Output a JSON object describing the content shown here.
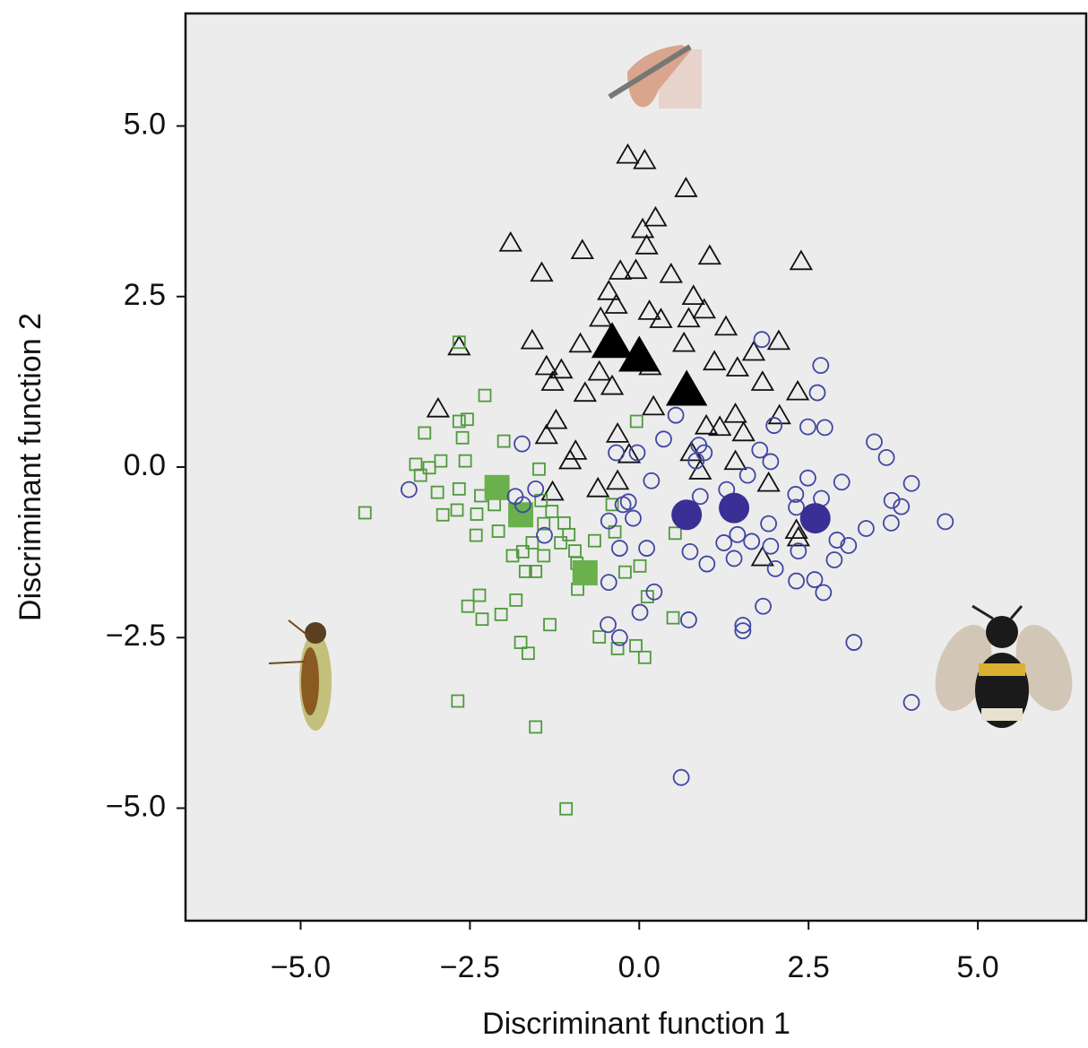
{
  "chart_data": {
    "type": "scatter",
    "xlabel": "Discriminant function 1",
    "ylabel": "Discriminant function 2",
    "xlim": [
      -6.7,
      6.6
    ],
    "ylim": [
      -6.65,
      6.65
    ],
    "xticks": [
      {
        "value": -5,
        "label": "−5.0"
      },
      {
        "value": -2.5,
        "label": "−2.5"
      },
      {
        "value": 0,
        "label": "0.0"
      },
      {
        "value": 2.5,
        "label": "2.5"
      },
      {
        "value": 5,
        "label": "5.0"
      }
    ],
    "yticks": [
      {
        "value": -5,
        "label": "−5.0"
      },
      {
        "value": -2.5,
        "label": "−2.5"
      },
      {
        "value": 0,
        "label": "0.0"
      },
      {
        "value": 2.5,
        "label": "2.5"
      },
      {
        "value": 5,
        "label": "5.0"
      }
    ],
    "series": [
      {
        "marker": "triangle",
        "filled": false,
        "color": "#111111",
        "x": [
          -0.17,
          0.08,
          0.69,
          0.24,
          0.05,
          -1.9,
          -0.84,
          0.11,
          1.04,
          2.39,
          -1.44,
          -0.28,
          -0.05,
          0.47,
          -0.45,
          0.8,
          -0.34,
          -0.57,
          0.15,
          0.96,
          0.32,
          1.28,
          0.73,
          -2.66,
          -1.58,
          -0.87,
          0.66,
          1.69,
          2.06,
          -1.37,
          -1.15,
          -0.59,
          0.16,
          1.11,
          1.45,
          1.82,
          -1.28,
          -0.4,
          2.34,
          -0.8,
          0.21,
          2.07,
          -2.97,
          -1.23,
          0.99,
          1.19,
          1.54,
          -0.32,
          1.42,
          -1.37,
          -0.94,
          0.77,
          -0.15,
          0.9,
          -1.02,
          1.42,
          -0.61,
          1.91,
          -1.28,
          -0.32,
          2.32,
          1.82,
          2.35
        ],
        "y": [
          4.56,
          4.48,
          4.07,
          3.64,
          3.47,
          3.27,
          3.16,
          3.23,
          3.08,
          3.0,
          2.83,
          2.86,
          2.87,
          2.81,
          2.56,
          2.49,
          2.36,
          2.17,
          2.27,
          2.29,
          2.15,
          2.04,
          2.16,
          1.75,
          1.84,
          1.79,
          1.8,
          1.67,
          1.83,
          1.46,
          1.41,
          1.38,
          1.46,
          1.53,
          1.44,
          1.23,
          1.23,
          1.17,
          1.09,
          1.07,
          0.87,
          0.74,
          0.84,
          0.67,
          0.59,
          0.57,
          0.49,
          0.47,
          0.76,
          0.45,
          0.22,
          0.2,
          0.17,
          -0.07,
          0.08,
          0.07,
          -0.33,
          -0.25,
          -0.38,
          -0.22,
          -0.94,
          -1.34,
          -1.05
        ]
      },
      {
        "marker": "triangle",
        "filled": true,
        "color": "#000000",
        "x": [
          -0.4,
          0,
          0.7
        ],
        "y": [
          1.8,
          1.6,
          1.1
        ]
      },
      {
        "marker": "square",
        "filled": false,
        "color": "#4f9a3c",
        "x": [
          -2.66,
          -2.28,
          -3.17,
          -2.66,
          -2.54,
          -2.61,
          -2.0,
          -2.57,
          -3.3,
          -3.1,
          -2.93,
          -3.23,
          -2.98,
          -2.66,
          -2.34,
          -2.14,
          -4.05,
          -2.9,
          -2.69,
          -2.41,
          -2.08,
          -2.4,
          -1.87,
          -1.48,
          -1.45,
          -1.29,
          -1.11,
          -1.16,
          -1.41,
          -1.58,
          -1.72,
          -1.41,
          -1.53,
          -1.68,
          -0.95,
          -0.66,
          -0.92,
          -1.04,
          -0.36,
          -0.21,
          0.01,
          0.12,
          -0.91,
          -2.36,
          -2.53,
          -1.82,
          -2.04,
          -2.32,
          -1.32,
          -1.75,
          -1.64,
          -0.59,
          -0.32,
          -0.05,
          0.08,
          0.5,
          -2.68,
          -1.53,
          -1.08,
          -0.04,
          -0.4,
          0.53
        ],
        "y": [
          1.83,
          1.05,
          0.5,
          0.67,
          0.7,
          0.43,
          0.38,
          0.09,
          0.04,
          -0.01,
          0.09,
          -0.12,
          -0.37,
          -0.32,
          -0.42,
          -0.55,
          -0.67,
          -0.7,
          -0.63,
          -1.0,
          -0.94,
          -0.69,
          -1.3,
          -0.03,
          -0.49,
          -0.65,
          -0.82,
          -1.11,
          -0.83,
          -1.11,
          -1.24,
          -1.3,
          -1.53,
          -1.53,
          -1.23,
          -1.08,
          -1.41,
          -0.99,
          -0.95,
          -1.54,
          -1.45,
          -1.9,
          -1.79,
          -1.88,
          -2.04,
          -1.95,
          -2.16,
          -2.23,
          -2.31,
          -2.57,
          -2.73,
          -2.49,
          -2.66,
          -2.62,
          -2.79,
          -2.21,
          -3.43,
          -3.81,
          -5.01,
          0.67,
          -0.55,
          -0.97
        ]
      },
      {
        "marker": "square",
        "filled": true,
        "color": "#6ab04c",
        "x": [
          -2.1,
          -1.75,
          -0.8
        ],
        "y": [
          -0.3,
          -0.7,
          -1.55
        ]
      },
      {
        "marker": "circle",
        "filled": false,
        "color": "#3f46a3",
        "x": [
          -3.4,
          -1.73,
          -1.53,
          -1.83,
          -1.4,
          -1.72,
          -0.34,
          -0.03,
          0.36,
          0.54,
          0.18,
          -0.16,
          -0.24,
          -0.09,
          -0.45,
          -0.29,
          0.11,
          -0.45,
          0.22,
          0.01,
          -0.46,
          -0.29,
          0.73,
          0.75,
          1.0,
          1.25,
          1.4,
          1.66,
          2.01,
          1.94,
          2.35,
          2.32,
          2.59,
          2.72,
          2.88,
          3.09,
          3.35,
          2.92,
          2.69,
          2.99,
          2.31,
          2.49,
          2.32,
          3.72,
          3.87,
          4.02,
          3.73,
          4.52,
          3.47,
          3.65,
          2.68,
          2.63,
          2.74,
          2.49,
          1.81,
          1.99,
          1.78,
          1.94,
          1.6,
          1.29,
          0.9,
          1.91,
          1.45,
          1.83,
          1.53,
          1.53,
          3.17,
          4.02,
          0.62,
          0.88,
          0.96,
          0.84
        ],
        "y": [
          -0.33,
          0.34,
          -0.32,
          -0.43,
          -1.0,
          -0.55,
          0.21,
          0.21,
          0.41,
          0.76,
          -0.2,
          -0.51,
          -0.55,
          -0.75,
          -0.79,
          -1.19,
          -1.19,
          -1.69,
          -1.83,
          -2.13,
          -2.31,
          -2.5,
          -2.24,
          -1.24,
          -1.42,
          -1.11,
          -1.34,
          -1.09,
          -1.49,
          -1.16,
          -1.23,
          -1.67,
          -1.65,
          -1.84,
          -1.36,
          -1.15,
          -0.9,
          -1.07,
          -0.46,
          -0.22,
          -0.4,
          -0.16,
          -0.59,
          -0.82,
          -0.58,
          -0.24,
          -0.49,
          -0.8,
          0.37,
          0.14,
          1.49,
          1.09,
          0.58,
          0.59,
          1.87,
          0.61,
          0.25,
          0.08,
          -0.12,
          -0.33,
          -0.43,
          -0.83,
          -0.99,
          -2.04,
          -2.32,
          -2.4,
          -2.57,
          -3.45,
          -4.55,
          0.32,
          0.21,
          0.09
        ]
      },
      {
        "marker": "circle",
        "filled": true,
        "color": "#3a2f95",
        "x": [
          0.7,
          1.4,
          2.6
        ],
        "y": [
          -0.7,
          -0.6,
          -0.75
        ]
      }
    ]
  }
}
